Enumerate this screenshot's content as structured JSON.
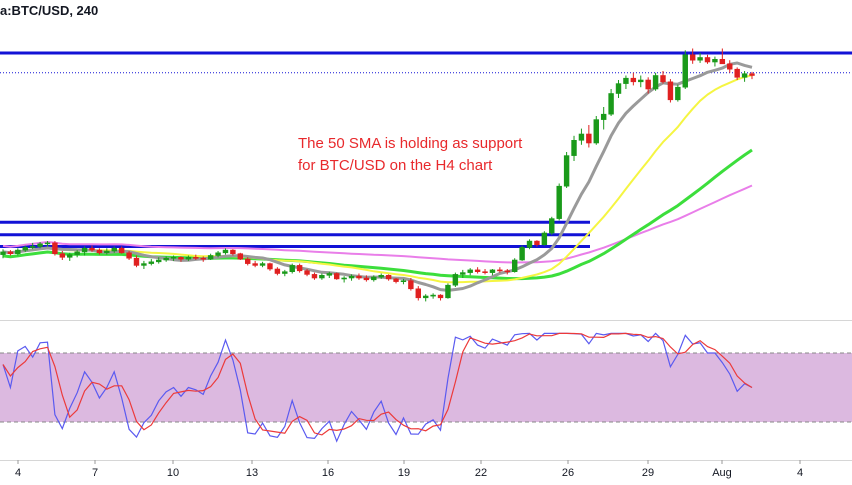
{
  "chart_data": {
    "type": "candlestick",
    "symbol_label": "a:BTC/USD, 240",
    "annotation": [
      "The 50 SMA is holding as support",
      "for BTC/USD on the H4 chart"
    ],
    "x_ticks": [
      "4",
      "7",
      "10",
      "13",
      "16",
      "19",
      "22",
      "26",
      "29",
      "Aug",
      "4"
    ],
    "colors": {
      "up": "#1a9a1a",
      "down": "#e02020",
      "sma_grey": "#9a9a9a",
      "sma_yellow": "#f5f542",
      "sma_green": "#3cde3c",
      "sma_magenta": "#e97ee9",
      "levels": "#1212d6",
      "stoch_k": "#5a5af0",
      "stoch_d": "#ec3a3a",
      "stoch_band": "#dcb9e0"
    },
    "price_levels": [
      {
        "name": "resistance-top",
        "value": 11400
      },
      {
        "name": "support-1",
        "value": 9520
      },
      {
        "name": "support-2",
        "value": 9380
      },
      {
        "name": "support-3",
        "value": 9250
      }
    ],
    "last_price_line": 11180,
    "stochastic": {
      "upper": 80,
      "lower": 20
    },
    "series": [
      {
        "name": "candles",
        "ohlc": [
          [
            9160,
            9220,
            9120,
            9190
          ],
          [
            9190,
            9210,
            9150,
            9170
          ],
          [
            9170,
            9230,
            9150,
            9210
          ],
          [
            9210,
            9260,
            9190,
            9240
          ],
          [
            9240,
            9290,
            9220,
            9250
          ],
          [
            9250,
            9300,
            9230,
            9280
          ],
          [
            9280,
            9310,
            9250,
            9290
          ],
          [
            9290,
            9310,
            9150,
            9170
          ],
          [
            9170,
            9200,
            9100,
            9130
          ],
          [
            9130,
            9180,
            9090,
            9160
          ],
          [
            9160,
            9210,
            9130,
            9190
          ],
          [
            9190,
            9250,
            9150,
            9230
          ],
          [
            9230,
            9260,
            9190,
            9210
          ],
          [
            9210,
            9230,
            9160,
            9180
          ],
          [
            9180,
            9230,
            9160,
            9200
          ],
          [
            9200,
            9250,
            9180,
            9230
          ],
          [
            9230,
            9250,
            9170,
            9180
          ],
          [
            9180,
            9200,
            9100,
            9120
          ],
          [
            9120,
            9150,
            9020,
            9040
          ],
          [
            9040,
            9090,
            9000,
            9060
          ],
          [
            9060,
            9110,
            9040,
            9080
          ],
          [
            9080,
            9130,
            9060,
            9100
          ],
          [
            9100,
            9140,
            9080,
            9120
          ],
          [
            9120,
            9150,
            9090,
            9130
          ],
          [
            9130,
            9140,
            9080,
            9110
          ],
          [
            9110,
            9150,
            9090,
            9130
          ],
          [
            9130,
            9160,
            9100,
            9120
          ],
          [
            9120,
            9140,
            9080,
            9110
          ],
          [
            9110,
            9170,
            9100,
            9150
          ],
          [
            9150,
            9200,
            9130,
            9180
          ],
          [
            9180,
            9230,
            9160,
            9210
          ],
          [
            9210,
            9220,
            9150,
            9170
          ],
          [
            9170,
            9180,
            9100,
            9110
          ],
          [
            9110,
            9130,
            9040,
            9060
          ],
          [
            9060,
            9090,
            9020,
            9040
          ],
          [
            9040,
            9080,
            9020,
            9060
          ],
          [
            9060,
            9070,
            8980,
            9000
          ],
          [
            9000,
            9020,
            8930,
            8950
          ],
          [
            8950,
            8990,
            8920,
            8970
          ],
          [
            8970,
            9060,
            8950,
            9040
          ],
          [
            9040,
            9060,
            8960,
            8980
          ],
          [
            8980,
            9000,
            8920,
            8940
          ],
          [
            8940,
            8960,
            8880,
            8900
          ],
          [
            8900,
            8950,
            8880,
            8930
          ],
          [
            8930,
            8970,
            8900,
            8950
          ],
          [
            8950,
            8960,
            8880,
            8890
          ],
          [
            8890,
            8920,
            8850,
            8900
          ],
          [
            8900,
            8940,
            8870,
            8920
          ],
          [
            8920,
            8950,
            8880,
            8900
          ],
          [
            8900,
            8930,
            8860,
            8880
          ],
          [
            8880,
            8930,
            8860,
            8910
          ],
          [
            8910,
            8950,
            8890,
            8930
          ],
          [
            8930,
            8940,
            8870,
            8890
          ],
          [
            8890,
            8900,
            8840,
            8860
          ],
          [
            8860,
            8890,
            8830,
            8870
          ],
          [
            8870,
            8900,
            8760,
            8780
          ],
          [
            8780,
            8810,
            8650,
            8680
          ],
          [
            8680,
            8720,
            8640,
            8700
          ],
          [
            8700,
            8730,
            8670,
            8710
          ],
          [
            8710,
            8720,
            8650,
            8680
          ],
          [
            8680,
            8840,
            8670,
            8820
          ],
          [
            8820,
            8960,
            8800,
            8940
          ],
          [
            8940,
            8990,
            8900,
            8960
          ],
          [
            8960,
            9010,
            8930,
            8990
          ],
          [
            8990,
            9020,
            8950,
            8970
          ],
          [
            8970,
            9000,
            8940,
            8960
          ],
          [
            8960,
            9000,
            8930,
            8990
          ],
          [
            8990,
            9020,
            8960,
            8980
          ],
          [
            8980,
            9000,
            8940,
            8970
          ],
          [
            8970,
            9120,
            8960,
            9100
          ],
          [
            9100,
            9260,
            9090,
            9240
          ],
          [
            9240,
            9330,
            9220,
            9310
          ],
          [
            9310,
            9320,
            9250,
            9270
          ],
          [
            9270,
            9420,
            9260,
            9400
          ],
          [
            9400,
            9580,
            9380,
            9560
          ],
          [
            9560,
            9950,
            9540,
            9920
          ],
          [
            9920,
            10300,
            9900,
            10260
          ],
          [
            10260,
            10480,
            10200,
            10430
          ],
          [
            10430,
            10560,
            10380,
            10500
          ],
          [
            10500,
            10600,
            10350,
            10400
          ],
          [
            10400,
            10700,
            10380,
            10660
          ],
          [
            10660,
            10800,
            10550,
            10720
          ],
          [
            10720,
            11000,
            10700,
            10950
          ],
          [
            10950,
            11100,
            10900,
            11060
          ],
          [
            11060,
            11150,
            11000,
            11120
          ],
          [
            11120,
            11180,
            11040,
            11080
          ],
          [
            11080,
            11150,
            11020,
            11100
          ],
          [
            11100,
            11130,
            10950,
            11000
          ],
          [
            11000,
            11180,
            10980,
            11150
          ],
          [
            11150,
            11200,
            11060,
            11080
          ],
          [
            11080,
            11110,
            10850,
            10880
          ],
          [
            10880,
            11050,
            10860,
            11020
          ],
          [
            11020,
            11430,
            11000,
            11380
          ],
          [
            11380,
            11450,
            11280,
            11320
          ],
          [
            11320,
            11400,
            11290,
            11350
          ],
          [
            11350,
            11380,
            11280,
            11300
          ],
          [
            11300,
            11360,
            11250,
            11330
          ],
          [
            11330,
            11450,
            11300,
            11280
          ],
          [
            11280,
            11320,
            11180,
            11220
          ],
          [
            11220,
            11240,
            11100,
            11130
          ],
          [
            11130,
            11200,
            11080,
            11170
          ],
          [
            11170,
            11190,
            11110,
            11150
          ]
        ]
      }
    ]
  }
}
